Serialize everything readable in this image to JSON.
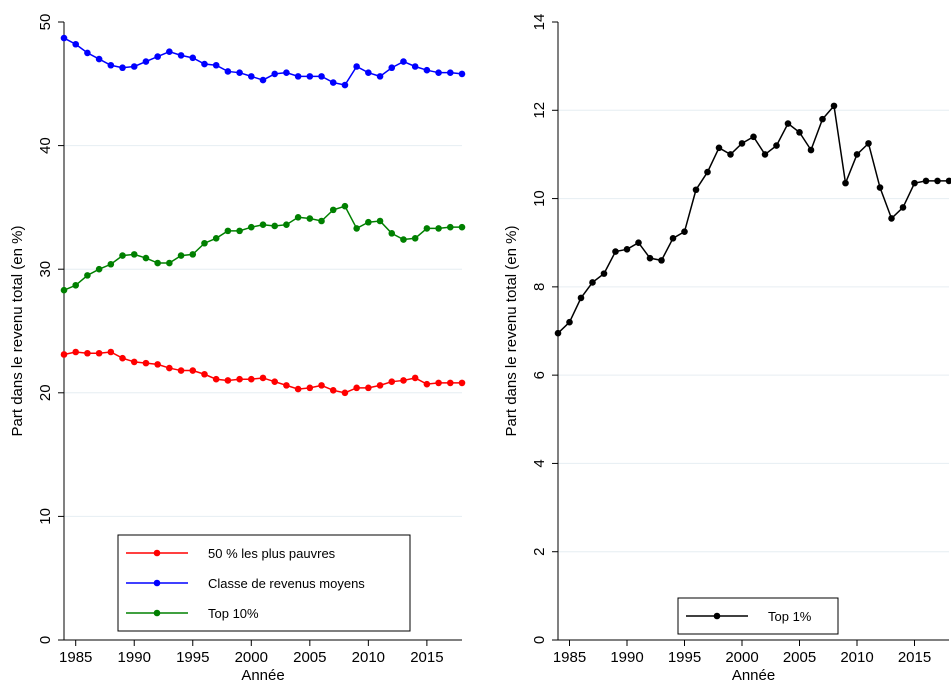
{
  "chart_data": [
    {
      "type": "line",
      "ylabel": "Part dans le revenu total (en %)",
      "xlabel": "Année",
      "x": [
        1984,
        1985,
        1986,
        1987,
        1988,
        1989,
        1990,
        1991,
        1992,
        1993,
        1994,
        1995,
        1996,
        1997,
        1998,
        1999,
        2000,
        2001,
        2002,
        2003,
        2004,
        2005,
        2006,
        2007,
        2008,
        2009,
        2010,
        2011,
        2012,
        2013,
        2014,
        2015,
        2016,
        2017,
        2018
      ],
      "series": [
        {
          "name": "50 % les plus pauvres",
          "color": "#ff0000",
          "values": [
            23.1,
            23.3,
            23.2,
            23.2,
            23.3,
            22.8,
            22.5,
            22.4,
            22.3,
            22.0,
            21.8,
            21.8,
            21.5,
            21.1,
            21.0,
            21.1,
            21.1,
            21.2,
            20.9,
            20.6,
            20.3,
            20.4,
            20.6,
            20.2,
            20.0,
            20.4,
            20.4,
            20.6,
            20.9,
            21.0,
            21.2,
            20.7,
            20.8,
            20.8,
            20.8
          ]
        },
        {
          "name": "Classe de revenus moyens",
          "color": "#0000ff",
          "values": [
            48.7,
            48.2,
            47.5,
            47.0,
            46.5,
            46.3,
            46.4,
            46.8,
            47.2,
            47.6,
            47.3,
            47.1,
            46.6,
            46.5,
            46.0,
            45.9,
            45.6,
            45.3,
            45.8,
            45.9,
            45.6,
            45.6,
            45.6,
            45.1,
            44.9,
            46.4,
            45.9,
            45.6,
            46.3,
            46.8,
            46.4,
            46.1,
            45.9,
            45.9,
            45.8
          ]
        },
        {
          "name": "Top 10%",
          "color": "#008000",
          "values": [
            28.3,
            28.7,
            29.5,
            30.0,
            30.4,
            31.1,
            31.2,
            30.9,
            30.5,
            30.5,
            31.1,
            31.2,
            32.1,
            32.5,
            33.1,
            33.1,
            33.4,
            33.6,
            33.5,
            33.6,
            34.2,
            34.1,
            33.9,
            34.8,
            35.1,
            33.3,
            33.8,
            33.9,
            32.9,
            32.4,
            32.5,
            33.3,
            33.3,
            33.4,
            33.4
          ]
        }
      ],
      "xlim": [
        1984,
        2018
      ],
      "xticks": [
        1985,
        1990,
        1995,
        2000,
        2005,
        2010,
        2015
      ],
      "ylim": [
        0,
        50
      ],
      "yticks": [
        0,
        10,
        20,
        30,
        40,
        50
      ],
      "grid": true,
      "legend": "bottom"
    },
    {
      "type": "line",
      "ylabel": "Part dans le revenu total (en %)",
      "xlabel": "Année",
      "x": [
        1984,
        1985,
        1986,
        1987,
        1988,
        1989,
        1990,
        1991,
        1992,
        1993,
        1994,
        1995,
        1996,
        1997,
        1998,
        1999,
        2000,
        2001,
        2002,
        2003,
        2004,
        2005,
        2006,
        2007,
        2008,
        2009,
        2010,
        2011,
        2012,
        2013,
        2014,
        2015,
        2016,
        2017,
        2018
      ],
      "series": [
        {
          "name": "Top 1%",
          "color": "#000000",
          "values": [
            6.95,
            7.2,
            7.75,
            8.1,
            8.3,
            8.8,
            8.85,
            9.0,
            8.65,
            8.6,
            9.1,
            9.25,
            10.2,
            10.6,
            11.15,
            11.0,
            11.25,
            11.4,
            11.0,
            11.2,
            11.7,
            11.5,
            11.1,
            11.8,
            12.1,
            10.35,
            11.0,
            11.25,
            10.25,
            9.55,
            9.8,
            10.35,
            10.4,
            10.4,
            10.4
          ]
        }
      ],
      "xlim": [
        1984,
        2018
      ],
      "xticks": [
        1985,
        1990,
        1995,
        2000,
        2005,
        2010,
        2015
      ],
      "ylim": [
        0,
        14
      ],
      "yticks": [
        0,
        2,
        4,
        6,
        8,
        10,
        12,
        14
      ],
      "grid": true,
      "legend": "bottom-right"
    }
  ]
}
